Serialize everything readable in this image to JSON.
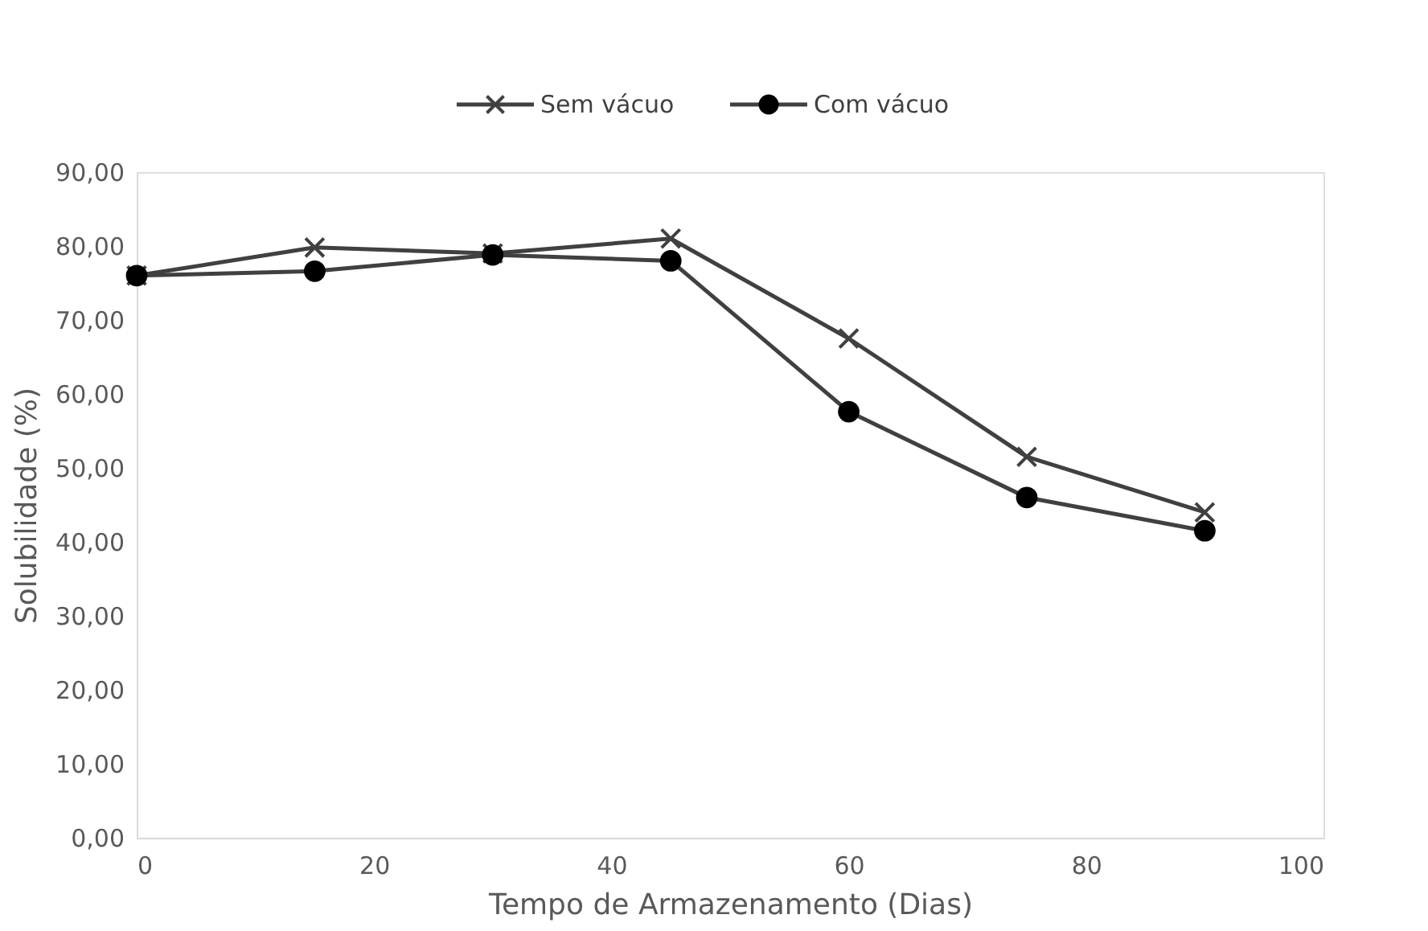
{
  "chart_data": {
    "type": "line",
    "xlabel": "Tempo de Armazenamento (Dias)",
    "ylabel": "Solubilidade (%)",
    "x": [
      0,
      15,
      30,
      45,
      60,
      75,
      90
    ],
    "series": [
      {
        "name": "Sem vácuo",
        "color": "#404040",
        "marker": "cross",
        "values": [
          76,
          79.8,
          79,
          81,
          67.5,
          51.5,
          44
        ]
      },
      {
        "name": "Com vácuo",
        "color": "#000000",
        "marker": "circle",
        "values": [
          76,
          76.6,
          78.8,
          78,
          57.6,
          46,
          41.5
        ]
      }
    ],
    "xlim": [
      0,
      100
    ],
    "xticks": [
      0,
      20,
      40,
      60,
      80,
      100
    ],
    "ylim": [
      0,
      90
    ],
    "yticks": [
      {
        "value": 0,
        "label": "0,00"
      },
      {
        "value": 10,
        "label": "10,00"
      },
      {
        "value": 20,
        "label": "20,00"
      },
      {
        "value": 30,
        "label": "30,00"
      },
      {
        "value": 40,
        "label": "40,00"
      },
      {
        "value": 50,
        "label": "50,00"
      },
      {
        "value": 60,
        "label": "60,00"
      },
      {
        "value": 70,
        "label": "70,00"
      },
      {
        "value": 80,
        "label": "80,00"
      },
      {
        "value": 90,
        "label": "90,00"
      }
    ],
    "grid": false,
    "legend": "top"
  }
}
